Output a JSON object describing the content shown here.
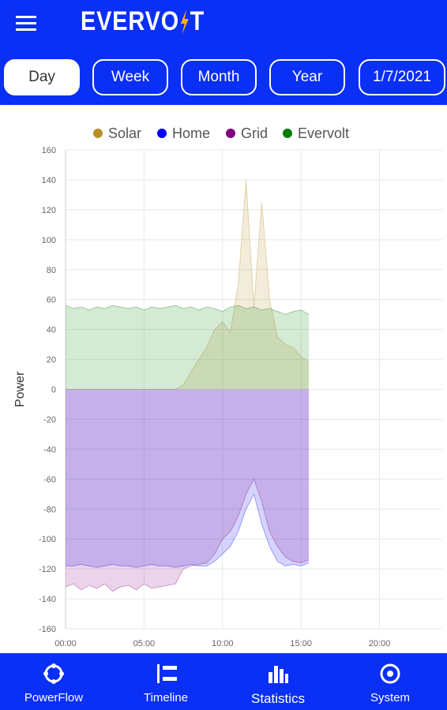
{
  "header": {
    "logo": [
      "EVERVO",
      "T"
    ]
  },
  "tabs": [
    "Day",
    "Week",
    "Month",
    "Year",
    "1/7/2021"
  ],
  "selected_tab": 0,
  "chart_data": {
    "type": "area",
    "y_label": "Power",
    "x": [
      0,
      0.5,
      1,
      1.5,
      2,
      2.5,
      3,
      3.5,
      4,
      4.5,
      5,
      5.5,
      6,
      6.5,
      7,
      7.5,
      8,
      8.5,
      9,
      9.5,
      10,
      10.5,
      11,
      11.5,
      12,
      12.5,
      13,
      13.5,
      14,
      14.5,
      15,
      15.5
    ],
    "series": [
      {
        "name": "Solar",
        "color": "#b8912a",
        "values": [
          0,
          0,
          0,
          0,
          0,
          0,
          0,
          0,
          0,
          0,
          0,
          0,
          0,
          0,
          0,
          3,
          12,
          20,
          28,
          40,
          45,
          38,
          70,
          140,
          55,
          125,
          60,
          35,
          30,
          28,
          22,
          18
        ]
      },
      {
        "name": "Home",
        "color": "#0000ff",
        "values": [
          -118,
          -118,
          -117,
          -118,
          -119,
          -118,
          -117,
          -118,
          -118,
          -119,
          -118,
          -117,
          -118,
          -118,
          -119,
          -118,
          -117,
          -118,
          -118,
          -115,
          -110,
          -105,
          -95,
          -80,
          -70,
          -90,
          -105,
          -115,
          -118,
          -117,
          -118,
          -116
        ]
      },
      {
        "name": "Grid",
        "color": "#800080",
        "values": [
          -132,
          -130,
          -134,
          -131,
          -133,
          -130,
          -135,
          -132,
          -131,
          -134,
          -130,
          -133,
          -132,
          -131,
          -130,
          -120,
          -118,
          -117,
          -116,
          -110,
          -100,
          -95,
          -85,
          -70,
          -60,
          -75,
          -95,
          -105,
          -112,
          -115,
          -116,
          -114
        ]
      },
      {
        "name": "Evervolt",
        "color": "#008000",
        "values": [
          56,
          54,
          55,
          53,
          55,
          54,
          56,
          55,
          54,
          55,
          53,
          55,
          54,
          55,
          56,
          54,
          55,
          53,
          55,
          54,
          52,
          55,
          56,
          54,
          55,
          53,
          54,
          52,
          50,
          52,
          53,
          50
        ]
      }
    ],
    "xlim": [
      0,
      24
    ],
    "xticks": [
      {
        "value": 0,
        "label": "00:00"
      },
      {
        "value": 5,
        "label": "05:00"
      },
      {
        "value": 10,
        "label": "10:00"
      },
      {
        "value": 15,
        "label": "15:00"
      },
      {
        "value": 20,
        "label": "20:00"
      }
    ],
    "ylim": [
      -160,
      160
    ],
    "yticks": [
      -160,
      -140,
      -120,
      -100,
      -80,
      -60,
      -40,
      -20,
      0,
      20,
      40,
      60,
      80,
      100,
      120,
      140,
      160
    ],
    "grid": true
  },
  "nav": [
    "PowerFlow",
    "Timeline",
    "Statistics",
    "System"
  ]
}
